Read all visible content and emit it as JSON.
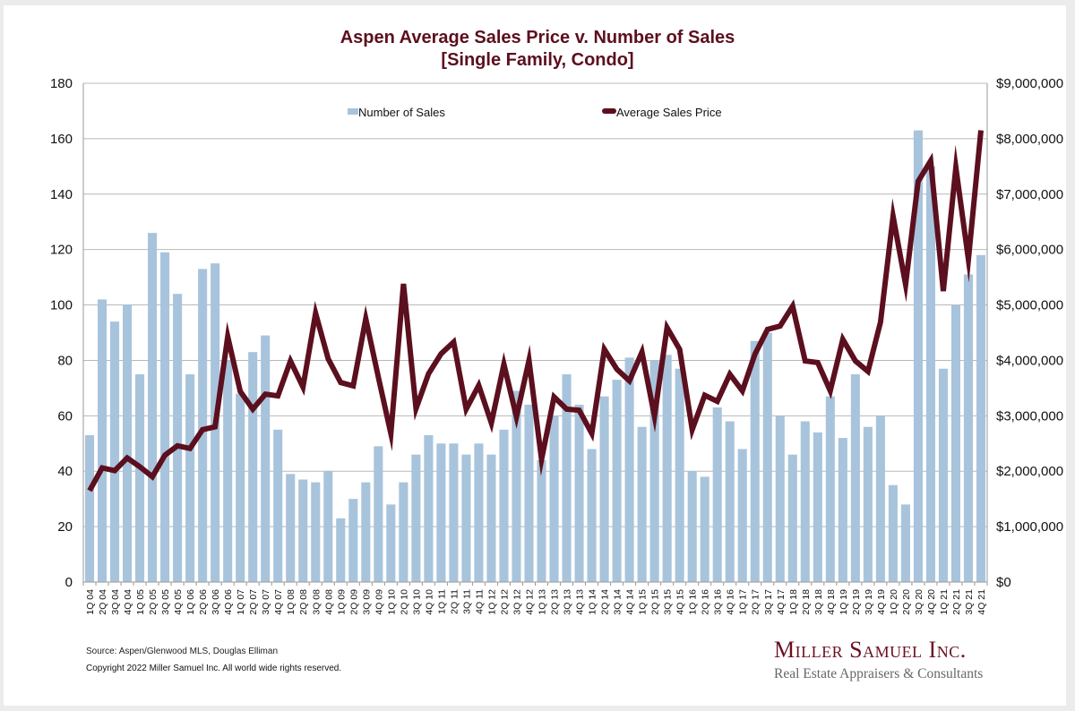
{
  "chart_data": {
    "type": "bar+line",
    "title": "Aspen Average Sales Price v. Number of Sales",
    "subtitle": "[Single Family, Condo]",
    "categories": [
      "1Q 04",
      "2Q 04",
      "3Q 04",
      "4Q 04",
      "1Q 05",
      "2Q 05",
      "3Q 05",
      "4Q 05",
      "1Q 06",
      "2Q 06",
      "3Q 06",
      "4Q 06",
      "1Q 07",
      "2Q 07",
      "3Q 07",
      "4Q 07",
      "1Q 08",
      "2Q 08",
      "3Q 08",
      "4Q 08",
      "1Q 09",
      "2Q 09",
      "3Q 09",
      "4Q 09",
      "1Q 10",
      "2Q 10",
      "3Q 10",
      "4Q 10",
      "1Q 11",
      "2Q 11",
      "3Q 11",
      "4Q 11",
      "1Q 12",
      "2Q 12",
      "3Q 12",
      "4Q 12",
      "1Q 13",
      "2Q 13",
      "3Q 13",
      "4Q 13",
      "1Q 14",
      "2Q 14",
      "3Q 14",
      "4Q 14",
      "1Q 15",
      "2Q 15",
      "3Q 15",
      "4Q 15",
      "1Q 16",
      "2Q 16",
      "3Q 16",
      "4Q 16",
      "1Q 17",
      "2Q 17",
      "3Q 17",
      "4Q 17",
      "1Q 18",
      "2Q 18",
      "3Q 18",
      "4Q 18",
      "1Q 19",
      "2Q 19",
      "3Q 19",
      "4Q 19",
      "1Q 20",
      "2Q 20",
      "3Q 20",
      "4Q 20",
      "1Q 21",
      "2Q 21",
      "3Q 21",
      "4Q 21"
    ],
    "series": [
      {
        "name": "Number of Sales",
        "type": "bar",
        "axis": "left",
        "color": "#a8c4dc",
        "values": [
          53,
          102,
          94,
          100,
          75,
          126,
          119,
          104,
          75,
          113,
          115,
          80,
          68,
          83,
          89,
          55,
          39,
          37,
          36,
          40,
          23,
          30,
          36,
          49,
          28,
          36,
          46,
          53,
          50,
          50,
          46,
          50,
          46,
          55,
          69,
          64,
          44,
          60,
          75,
          64,
          48,
          67,
          73,
          81,
          56,
          80,
          82,
          77,
          40,
          38,
          63,
          58,
          48,
          87,
          90,
          60,
          46,
          58,
          54,
          67,
          52,
          75,
          56,
          60,
          35,
          28,
          163,
          150,
          77,
          100,
          111,
          118
        ]
      },
      {
        "name": "Average Sales Price",
        "type": "line",
        "axis": "right",
        "color": "#5c0f1e",
        "values": [
          1650000,
          2060000,
          2010000,
          2240000,
          2080000,
          1900000,
          2290000,
          2460000,
          2410000,
          2750000,
          2800000,
          4430000,
          3440000,
          3120000,
          3390000,
          3360000,
          3990000,
          3520000,
          4850000,
          4030000,
          3600000,
          3540000,
          4750000,
          3700000,
          2680000,
          5380000,
          3130000,
          3760000,
          4120000,
          4330000,
          3120000,
          3550000,
          2870000,
          3930000,
          2980000,
          4000000,
          2210000,
          3340000,
          3120000,
          3100000,
          2680000,
          4200000,
          3840000,
          3630000,
          4150000,
          2990000,
          4590000,
          4200000,
          2750000,
          3370000,
          3260000,
          3750000,
          3450000,
          4110000,
          4560000,
          4620000,
          4980000,
          3990000,
          3960000,
          3450000,
          4380000,
          3990000,
          3800000,
          4690000,
          6600000,
          5370000,
          7230000,
          7600000,
          5250000,
          7480000,
          5820000,
          8150000
        ]
      }
    ],
    "left_axis": {
      "min": 0,
      "max": 180,
      "step": 20,
      "ticks": [
        "0",
        "20",
        "40",
        "60",
        "80",
        "100",
        "120",
        "140",
        "160",
        "180"
      ]
    },
    "right_axis": {
      "min": 0,
      "max": 9000000,
      "step": 1000000,
      "ticks": [
        "$0",
        "$1,000,000",
        "$2,000,000",
        "$3,000,000",
        "$4,000,000",
        "$5,000,000",
        "$6,000,000",
        "$7,000,000",
        "$8,000,000",
        "$9,000,000"
      ]
    },
    "grid": true,
    "legend": {
      "placement": "top-center",
      "items": [
        "Number of Sales",
        "Average Sales Price"
      ]
    }
  },
  "footer": {
    "source": "Source: Aspen/Glenwood MLS, Douglas Elliman",
    "copyright": "Copyright 2022 Miller Samuel Inc.  All world wide rights reserved."
  },
  "brand": {
    "name": "Miller Samuel Inc.",
    "tagline": "Real Estate Appraisers & Consultants"
  }
}
